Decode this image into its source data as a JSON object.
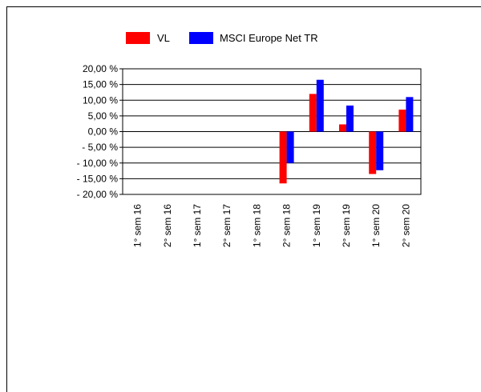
{
  "chart_data": {
    "type": "bar",
    "categories": [
      "1° sem 16",
      "2° sem 16",
      "1° sem 17",
      "2° sem 17",
      "1° sem 18",
      "2° sem 18",
      "1° sem 19",
      "2° sem 19",
      "1° sem 20",
      "2° sem 20"
    ],
    "series": [
      {
        "name": "VL",
        "color": "#ff0000",
        "values": [
          null,
          null,
          null,
          null,
          null,
          -16.5,
          12.0,
          2.3,
          -13.5,
          7.0
        ]
      },
      {
        "name": "MSCI Europe Net TR",
        "color": "#0000ff",
        "values": [
          null,
          null,
          null,
          null,
          null,
          -10.0,
          16.5,
          8.3,
          -12.3,
          11.0
        ]
      }
    ],
    "ylim": [
      -20,
      20
    ],
    "yticks": [
      20,
      15,
      10,
      5,
      0,
      -5,
      -10,
      -15,
      -20
    ],
    "ytick_labels": [
      "20,00 %",
      "15,00 %",
      "10,00 %",
      "5,00 %",
      "0,00 %",
      "- 5,00 %",
      "- 10,00 %",
      "- 15,00 %",
      "- 20,00 %"
    ],
    "grid": true,
    "legend": "top"
  }
}
